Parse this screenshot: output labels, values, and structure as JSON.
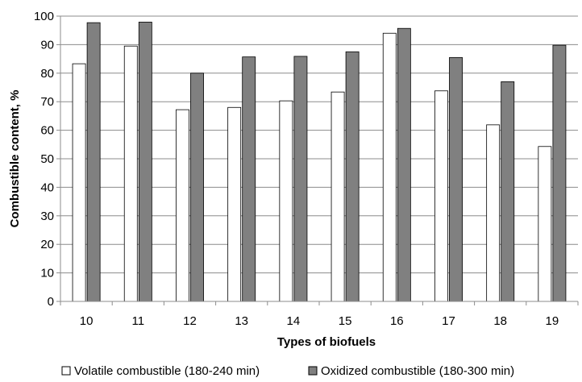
{
  "chart_data": {
    "type": "bar",
    "xlabel": "Types of biofuels",
    "ylabel": "Combustible content, %",
    "ylim": [
      0,
      100
    ],
    "yticks": [
      0,
      10,
      20,
      30,
      40,
      50,
      60,
      70,
      80,
      90,
      100
    ],
    "categories": [
      "10",
      "11",
      "12",
      "13",
      "14",
      "15",
      "16",
      "17",
      "18",
      "19"
    ],
    "grid": true,
    "legend_position": "bottom",
    "series": [
      {
        "name": "Volatile combustible (180-240 min)",
        "color": "#ffffff",
        "values": [
          83.3,
          89.5,
          67.2,
          68.0,
          70.3,
          73.4,
          94.0,
          73.8,
          61.9,
          54.3
        ]
      },
      {
        "name": "Oxidized combustible (180-300 min)",
        "color": "#808080",
        "values": [
          97.7,
          97.9,
          80.0,
          85.7,
          85.9,
          87.5,
          95.7,
          85.5,
          77.0,
          89.8
        ]
      }
    ]
  }
}
